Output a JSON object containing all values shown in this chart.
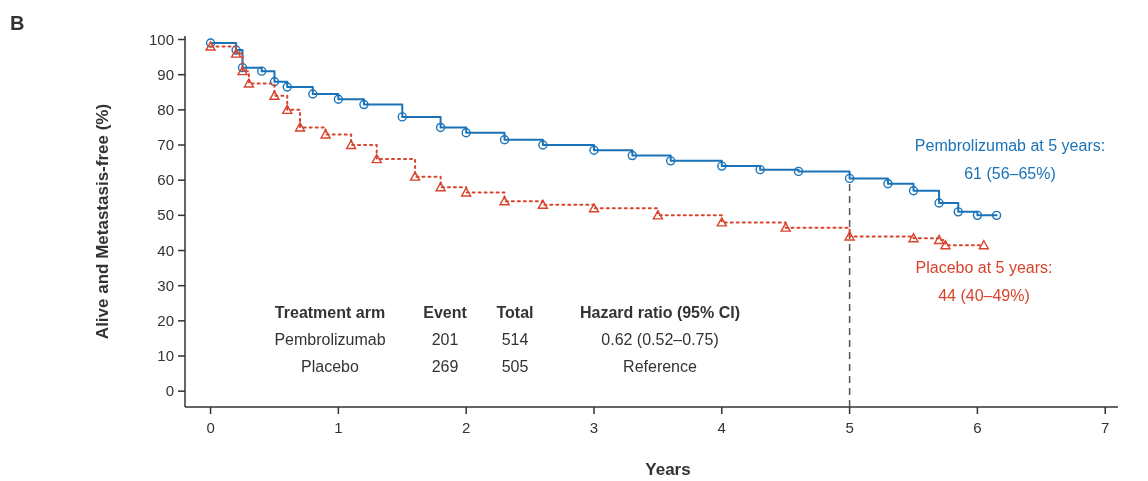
{
  "chart_data": {
    "type": "step",
    "title": "B",
    "xlabel": "Years",
    "ylabel": "Alive and Metastasis-free (%)",
    "xlim": [
      -0.2,
      7.1
    ],
    "ylim": [
      -4.5,
      101
    ],
    "xticks": [
      0,
      1,
      2,
      3,
      4,
      5,
      6,
      7
    ],
    "yticks": [
      0,
      10,
      20,
      30,
      40,
      50,
      60,
      70,
      80,
      90,
      100
    ],
    "grid": false,
    "series": [
      {
        "color": "#1a73b8",
        "marker": "circle",
        "line_style": "solid",
        "x": [
          0,
          0.2,
          0.25,
          0.4,
          0.5,
          0.6,
          0.8,
          1.0,
          1.2,
          1.5,
          1.8,
          2.0,
          2.3,
          2.6,
          3.0,
          3.3,
          3.6,
          4.0,
          4.3,
          4.6,
          5.0,
          5.3,
          5.5,
          5.7,
          5.85,
          6.0,
          6.15
        ],
        "values": [
          99,
          97,
          92,
          91,
          88,
          86.5,
          84.5,
          83,
          81.5,
          78,
          75,
          73.5,
          71.5,
          70,
          68.5,
          67,
          65.5,
          64,
          63,
          62.5,
          60.5,
          59,
          57,
          53.5,
          51,
          50,
          50
        ]
      },
      {
        "color": "#d9432b",
        "marker": "triangle",
        "line_style": "dotted",
        "x": [
          0,
          0.2,
          0.25,
          0.3,
          0.5,
          0.6,
          0.7,
          0.9,
          1.1,
          1.3,
          1.6,
          1.8,
          2.0,
          2.3,
          2.6,
          3.0,
          3.5,
          4.0,
          4.5,
          5.0,
          5.5,
          5.7,
          5.75,
          6.05
        ],
        "values": [
          98,
          96,
          91,
          87.5,
          84,
          80,
          75,
          73,
          70,
          66,
          61,
          58,
          56.5,
          54,
          53,
          52,
          50,
          48,
          46.5,
          44,
          43.5,
          43,
          41.5,
          41.5
        ]
      }
    ],
    "ref_lines": [
      {
        "axis": "x",
        "value": 5,
        "line_style": "dashed",
        "color": "#555555"
      }
    ],
    "annotations": [
      "Pembrolizumab at 5 years:\n61 (56–65%)",
      "Placebo at 5 years:\n44 (40–49%)",
      "Treatment arm",
      "Event",
      "Total",
      "Hazard ratio (95% CI)",
      "Pembrolizumab",
      "201",
      "514",
      "0.62 (0.52–0.75)",
      "Placebo",
      "269",
      "505",
      "Reference"
    ]
  }
}
